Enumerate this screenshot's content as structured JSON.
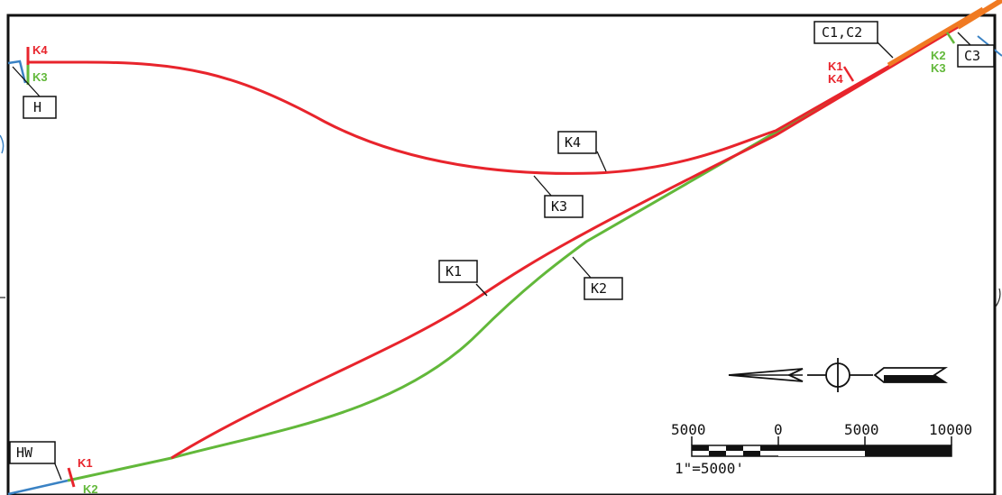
{
  "colors": {
    "route_red": "#e8242c",
    "route_green": "#62b83a",
    "existing_blue": "#3a82c4",
    "overlap_orange": "#f07a22",
    "frame": "#111111"
  },
  "callouts": {
    "h": "H",
    "hw": "HW",
    "c1c2": "C1,C2",
    "c3": "C3",
    "k1": "K1",
    "k2": "K2",
    "k3": "K3",
    "k4": "K4"
  },
  "endpoint_tags": {
    "left_top_red": "K4",
    "left_top_green": "K3",
    "left_bottom_red": "K1",
    "left_bottom_green": "K2",
    "right_red_1": "K1",
    "right_red_2": "K4",
    "right_green_1": "K2",
    "right_green_2": "K3"
  },
  "scale_bar": {
    "labels": [
      "5000",
      "0",
      "5000",
      "10000"
    ],
    "ratio_label": "1\"=5000'"
  },
  "north_arrow_icon": "north-arrow-icon"
}
